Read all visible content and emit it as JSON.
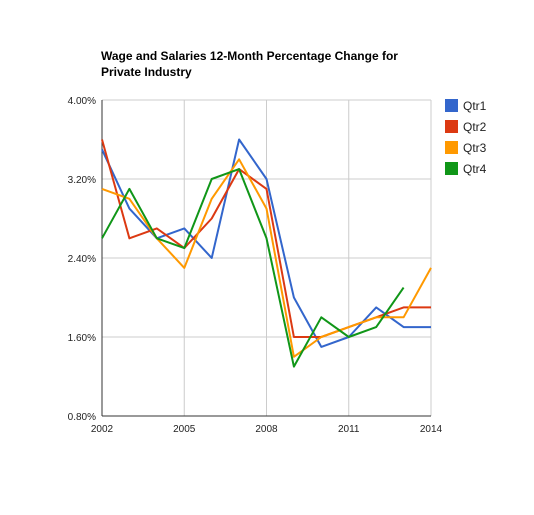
{
  "chart_data": {
    "type": "line",
    "title_lines": [
      "Wage and Salaries 12-Month Percentage Change for",
      "Private Industry"
    ],
    "xlabel": "",
    "ylabel": "",
    "x": [
      2002,
      2003,
      2004,
      2005,
      2006,
      2007,
      2008,
      2009,
      2010,
      2011,
      2012,
      2013,
      2014
    ],
    "xlim": [
      2002,
      2014
    ],
    "ylim": [
      0.8,
      4.0
    ],
    "x_ticks": [
      "2002",
      "2005",
      "2008",
      "2011",
      "2014"
    ],
    "y_ticks": [
      "4.00%",
      "3.20%",
      "2.40%",
      "1.60%",
      "0.80%"
    ],
    "grid": true,
    "legend_position": "right",
    "series": [
      {
        "name": "Qtr1",
        "color": "#3366cc",
        "values": [
          3.5,
          2.9,
          2.6,
          2.7,
          2.4,
          3.6,
          3.2,
          2.0,
          1.5,
          1.6,
          1.9,
          1.7,
          1.7
        ]
      },
      {
        "name": "Qtr2",
        "color": "#dc3912",
        "values": [
          3.6,
          2.6,
          2.7,
          2.5,
          2.8,
          3.3,
          3.1,
          1.6,
          1.6,
          1.7,
          1.8,
          1.9,
          1.9
        ]
      },
      {
        "name": "Qtr3",
        "color": "#ff9900",
        "values": [
          3.1,
          3.0,
          2.6,
          2.3,
          3.0,
          3.4,
          2.9,
          1.4,
          1.6,
          1.7,
          1.8,
          1.8,
          2.3
        ]
      },
      {
        "name": "Qtr4",
        "color": "#109618",
        "values": [
          2.6,
          3.1,
          2.6,
          2.5,
          3.2,
          3.3,
          2.6,
          1.3,
          1.8,
          1.6,
          1.7,
          2.1,
          null
        ]
      }
    ]
  }
}
